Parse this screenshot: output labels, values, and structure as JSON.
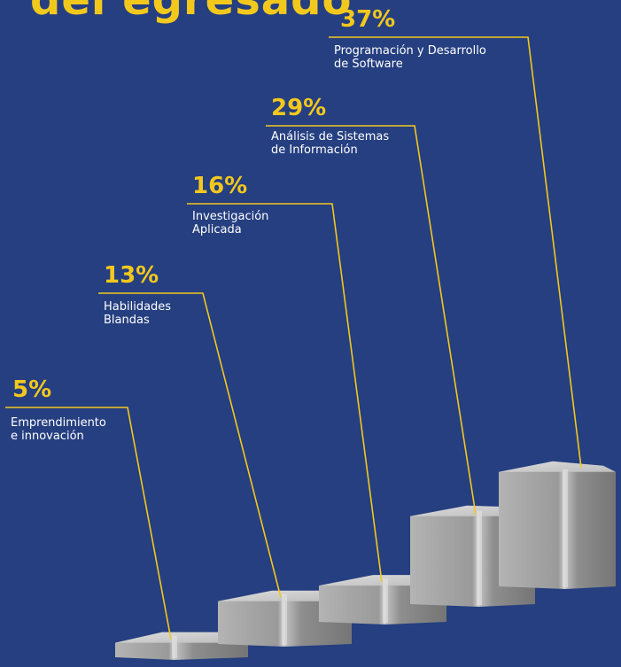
{
  "header": {
    "title_fragment": "del egresado"
  },
  "colors": {
    "background": "#253f80",
    "accent": "#f3c81d",
    "bar_front": "#a8a8a8",
    "bar_side": "#858585",
    "bar_top": "#d0d0d0",
    "label_text": "#ffffff"
  },
  "chart_data": {
    "type": "bar",
    "style": "3d-columns",
    "title": "",
    "xlabel": "",
    "ylabel": "",
    "grid": false,
    "legend": "none",
    "ylim": [
      0,
      40
    ],
    "categories": [
      "Emprendimiento\ne innovación",
      "Habilidades\nBlandas",
      "Investigación\nAplicada",
      "Análisis de Sistemas\nde Información",
      "Programación y Desarrollo\nde Software"
    ],
    "values": [
      5,
      13,
      16,
      29,
      37
    ],
    "value_labels": [
      "5%",
      "13%",
      "16%",
      "29%",
      "37%"
    ]
  }
}
